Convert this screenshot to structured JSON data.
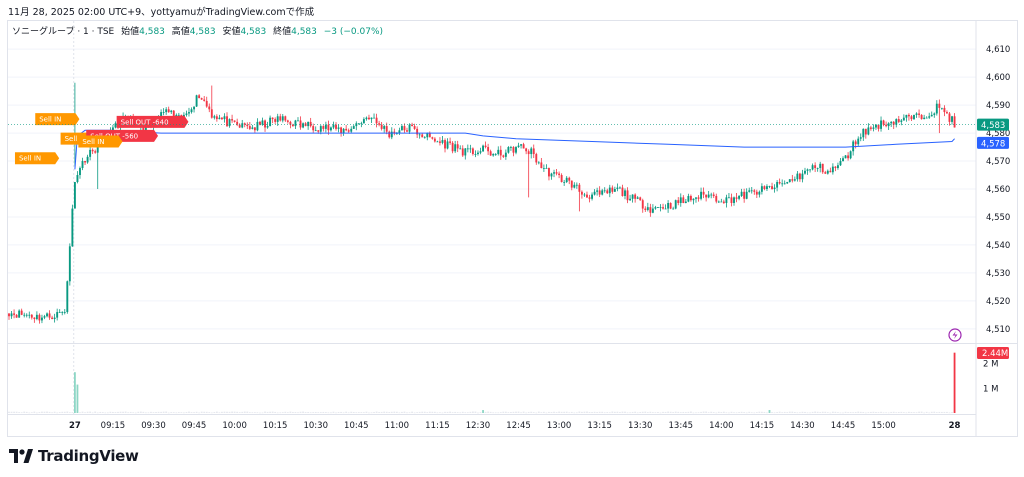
{
  "header": {
    "caption": "11月 28, 2025 02:00 UTC+9、yottyamuがTradingView.comで作成"
  },
  "legend": {
    "symbol": "ソニーグループ · 1 · TSE",
    "open_label": "始値",
    "open": "4,583",
    "high_label": "高値",
    "high": "4,583",
    "low_label": "安値",
    "low": "4,583",
    "close_label": "終値",
    "close": "4,583",
    "change": "−3 (−0.07%)"
  },
  "brand": {
    "name": "TradingView"
  },
  "chart_data": {
    "type": "candlestick",
    "price_axis": {
      "ticks": [
        4510,
        4520,
        4530,
        4540,
        4550,
        4560,
        4570,
        4580,
        4590,
        4600,
        4610
      ],
      "tick_labels": [
        "4,510",
        "4,520",
        "4,530",
        "4,540",
        "4,550",
        "4,560",
        "4,570",
        "4,580",
        "4,590",
        "4,600",
        "4,610"
      ],
      "range": [
        4506,
        4614
      ]
    },
    "volume_axis": {
      "ticks": [
        1000000,
        2000000
      ],
      "tick_labels": [
        "1 M",
        "2 M"
      ],
      "range": [
        0,
        2750000
      ]
    },
    "time_axis": {
      "labels": [
        "27",
        "09:15",
        "09:30",
        "09:45",
        "10:00",
        "10:15",
        "10:30",
        "10:45",
        "11:00",
        "11:15",
        "12:30",
        "12:45",
        "13:00",
        "13:15",
        "13:30",
        "13:45",
        "14:00",
        "14:15",
        "14:30",
        "14:45",
        "15:00",
        "28"
      ],
      "bold": [
        "27",
        "28"
      ]
    },
    "anchors": [
      [
        0,
        4516
      ],
      [
        14,
        4514
      ],
      [
        22,
        4516
      ],
      [
        26,
        4564
      ],
      [
        30,
        4571
      ],
      [
        36,
        4576
      ],
      [
        45,
        4585
      ],
      [
        55,
        4582
      ],
      [
        62,
        4588
      ],
      [
        68,
        4584
      ],
      [
        75,
        4594
      ],
      [
        80,
        4587
      ],
      [
        88,
        4583
      ],
      [
        97,
        4582
      ],
      [
        106,
        4585
      ],
      [
        115,
        4583
      ],
      [
        124,
        4582
      ],
      [
        133,
        4581
      ],
      [
        142,
        4586
      ],
      [
        150,
        4580
      ],
      [
        158,
        4582
      ],
      [
        166,
        4578
      ],
      [
        173,
        4576
      ],
      [
        181,
        4573
      ],
      [
        188,
        4574
      ],
      [
        192,
        4572
      ],
      [
        198,
        4574
      ],
      [
        202,
        4575
      ],
      [
        206,
        4573
      ],
      [
        211,
        4567
      ],
      [
        215,
        4565
      ],
      [
        220,
        4563
      ],
      [
        227,
        4558
      ],
      [
        234,
        4558
      ],
      [
        240,
        4560
      ],
      [
        247,
        4556
      ],
      [
        253,
        4553
      ],
      [
        260,
        4554
      ],
      [
        267,
        4556
      ],
      [
        275,
        4558
      ],
      [
        283,
        4556
      ],
      [
        291,
        4558
      ],
      [
        299,
        4560
      ],
      [
        306,
        4562
      ],
      [
        312,
        4565
      ],
      [
        318,
        4568
      ],
      [
        324,
        4566
      ],
      [
        330,
        4571
      ],
      [
        336,
        4580
      ],
      [
        343,
        4583
      ],
      [
        352,
        4585
      ],
      [
        360,
        4586
      ],
      [
        366,
        4589
      ],
      [
        369,
        4588
      ],
      [
        373,
        4583
      ]
    ],
    "candle_count": 374,
    "spikes": [
      {
        "i": 26,
        "high": 4598,
        "low": 4568
      },
      {
        "i": 35,
        "low": 4560
      },
      {
        "i": 80,
        "high": 4597
      },
      {
        "i": 205,
        "low": 4557
      },
      {
        "i": 225,
        "low": 4552
      },
      {
        "i": 367,
        "high": 4592,
        "low": 4580
      }
    ],
    "vwap": [
      [
        26,
        4567
      ],
      [
        27,
        4579
      ],
      [
        30,
        4581
      ],
      [
        40,
        4581
      ],
      [
        60,
        4580
      ],
      [
        80,
        4580
      ],
      [
        100,
        4580
      ],
      [
        130,
        4580
      ],
      [
        160,
        4580
      ],
      [
        180,
        4580
      ],
      [
        187,
        4579
      ],
      [
        200,
        4578
      ],
      [
        230,
        4577
      ],
      [
        260,
        4576
      ],
      [
        290,
        4575
      ],
      [
        310,
        4575
      ],
      [
        330,
        4575
      ],
      [
        350,
        4576
      ],
      [
        372,
        4577
      ],
      [
        373,
        4578
      ]
    ],
    "volume": {
      "base": 40000,
      "spikes": [
        [
          26,
          1650000
        ],
        [
          27,
          1150000
        ],
        [
          373,
          2440000
        ],
        [
          187,
          120000
        ],
        [
          300,
          120000
        ]
      ]
    },
    "last_price": {
      "label": "4,583",
      "value": 4583,
      "color": "#089981"
    },
    "vwap_price": {
      "label": "4,578",
      "value": 4578,
      "color": "#2962ff"
    },
    "last_volume": {
      "label": "2.44M",
      "color": "#f23645"
    },
    "markers": [
      {
        "text": "Sell IN",
        "color": "#ff9800",
        "i": 27,
        "price": 4585
      },
      {
        "text": "Sell IN",
        "color": "#ff9800",
        "i": 19,
        "price": 4571
      },
      {
        "text": "Sell IN",
        "color": "#ff9800",
        "i": 37,
        "price": 4578
      },
      {
        "text": "Sell OUT -640",
        "color": "#f23645",
        "i": 70,
        "price": 4584
      },
      {
        "text": "Sell OUT -560",
        "color": "#f23645",
        "i": 58,
        "price": 4579
      },
      {
        "text": "Sell IN",
        "color": "#ff9800",
        "i": 44,
        "price": 4577
      }
    ],
    "colors": {
      "up": "#089981",
      "down": "#f23645",
      "vwap": "#2962ff",
      "volume": "#d1d4dc"
    }
  }
}
